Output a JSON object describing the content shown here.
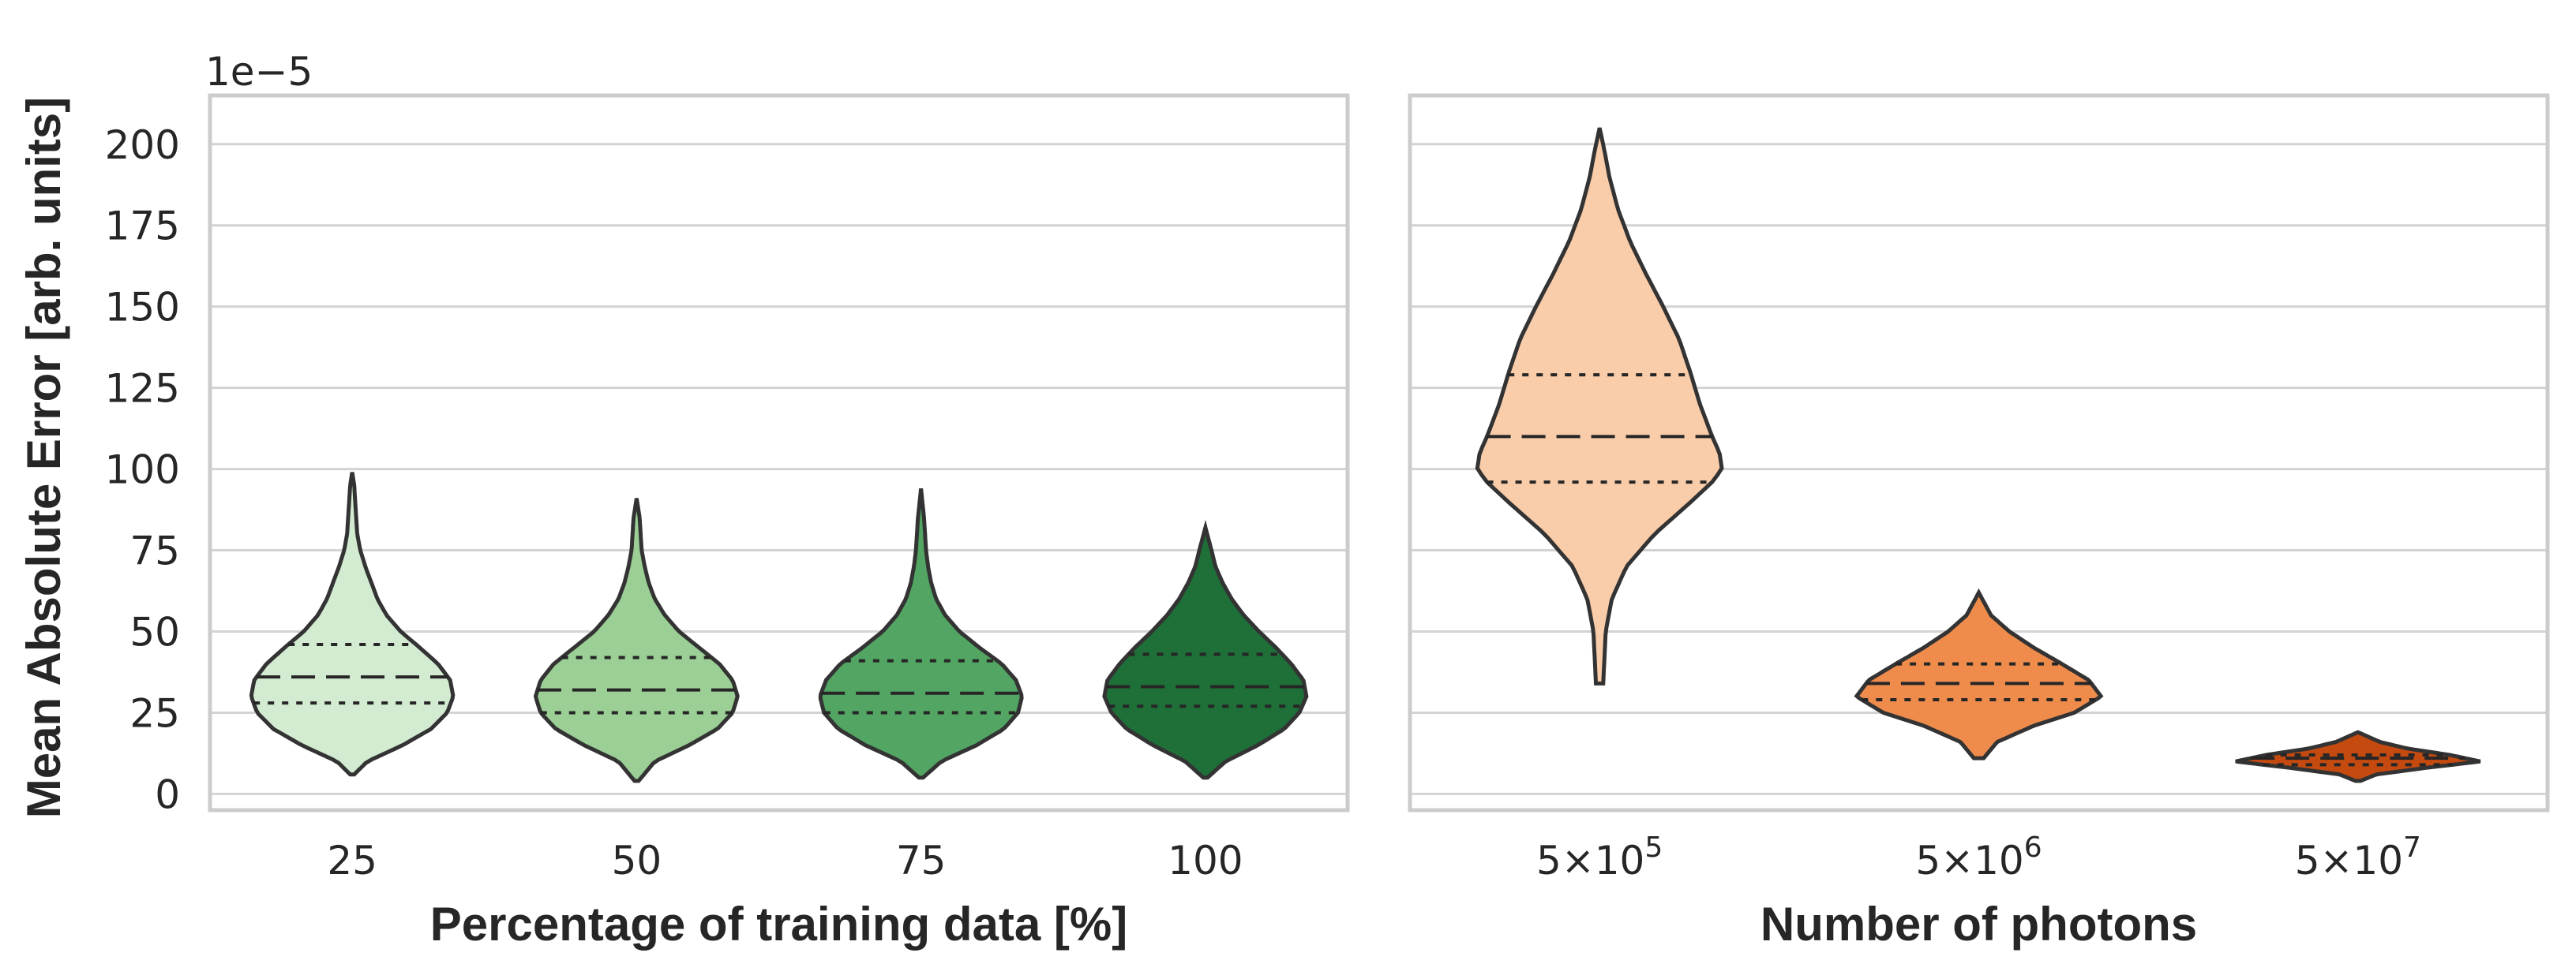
{
  "figure": {
    "ylabel": "Mean Absolute Error [arb. units]",
    "offset_text": "1e−5",
    "ylim": [
      -5,
      215
    ],
    "yticks": [
      0,
      25,
      50,
      75,
      100,
      125,
      150,
      175,
      200
    ],
    "ytick_labels": [
      "0",
      "25",
      "50",
      "75",
      "100",
      "125",
      "150",
      "175",
      "200"
    ]
  },
  "chart_data": [
    {
      "type": "violin",
      "title": "",
      "xlabel": "Percentage of training data [%]",
      "ylabel": "Mean Absolute Error [arb. units]",
      "ylim": [
        -5,
        215
      ],
      "grid": "horizontal",
      "inner": "quartile",
      "categories": [
        "25",
        "50",
        "75",
        "100"
      ],
      "series": [
        {
          "name": "25",
          "color": "#d3ebd1",
          "min": 6,
          "max": 99,
          "q1": 28,
          "median": 36,
          "q3": 46,
          "profile": [
            [
              6,
              0.02
            ],
            [
              10,
              0.15
            ],
            [
              15,
              0.5
            ],
            [
              20,
              0.78
            ],
            [
              25,
              0.94
            ],
            [
              30,
              1.0
            ],
            [
              35,
              0.97
            ],
            [
              40,
              0.85
            ],
            [
              45,
              0.67
            ],
            [
              50,
              0.48
            ],
            [
              55,
              0.34
            ],
            [
              60,
              0.25
            ],
            [
              65,
              0.19
            ],
            [
              70,
              0.13
            ],
            [
              75,
              0.08
            ],
            [
              80,
              0.05
            ],
            [
              85,
              0.04
            ],
            [
              90,
              0.03
            ],
            [
              95,
              0.02
            ],
            [
              99,
              0.0
            ]
          ]
        },
        {
          "name": "50",
          "color": "#9bcf95",
          "min": 4,
          "max": 91,
          "q1": 25,
          "median": 32,
          "q3": 42,
          "profile": [
            [
              4,
              0.02
            ],
            [
              10,
              0.18
            ],
            [
              15,
              0.52
            ],
            [
              20,
              0.8
            ],
            [
              25,
              0.95
            ],
            [
              30,
              1.0
            ],
            [
              35,
              0.95
            ],
            [
              40,
              0.82
            ],
            [
              45,
              0.62
            ],
            [
              50,
              0.42
            ],
            [
              55,
              0.28
            ],
            [
              60,
              0.18
            ],
            [
              65,
              0.12
            ],
            [
              70,
              0.08
            ],
            [
              75,
              0.05
            ],
            [
              80,
              0.04
            ],
            [
              85,
              0.03
            ],
            [
              91,
              0.0
            ]
          ]
        },
        {
          "name": "75",
          "color": "#52a562",
          "min": 5,
          "max": 94,
          "q1": 25,
          "median": 31,
          "q3": 41,
          "profile": [
            [
              5,
              0.02
            ],
            [
              10,
              0.2
            ],
            [
              15,
              0.55
            ],
            [
              20,
              0.82
            ],
            [
              25,
              0.96
            ],
            [
              30,
              1.0
            ],
            [
              35,
              0.94
            ],
            [
              40,
              0.8
            ],
            [
              45,
              0.58
            ],
            [
              50,
              0.38
            ],
            [
              55,
              0.24
            ],
            [
              60,
              0.15
            ],
            [
              65,
              0.1
            ],
            [
              70,
              0.07
            ],
            [
              75,
              0.05
            ],
            [
              80,
              0.04
            ],
            [
              85,
              0.03
            ],
            [
              94,
              0.0
            ]
          ]
        },
        {
          "name": "100",
          "color": "#1e6f38",
          "min": 5,
          "max": 82,
          "q1": 27,
          "median": 33,
          "q3": 43,
          "profile": [
            [
              5,
              0.02
            ],
            [
              10,
              0.2
            ],
            [
              15,
              0.52
            ],
            [
              20,
              0.78
            ],
            [
              25,
              0.93
            ],
            [
              30,
              1.0
            ],
            [
              35,
              0.97
            ],
            [
              40,
              0.85
            ],
            [
              45,
              0.7
            ],
            [
              50,
              0.53
            ],
            [
              55,
              0.38
            ],
            [
              60,
              0.26
            ],
            [
              65,
              0.17
            ],
            [
              70,
              0.1
            ],
            [
              75,
              0.06
            ],
            [
              82,
              0.0
            ]
          ]
        }
      ]
    },
    {
      "type": "violin",
      "title": "",
      "xlabel": "Number of photons",
      "ylabel": "",
      "ylim": [
        -5,
        215
      ],
      "grid": "horizontal",
      "inner": "quartile",
      "categories": [
        "5×10^5",
        "5×10^6",
        "5×10^7"
      ],
      "tick_labels": [
        {
          "base": "5×10",
          "exp": "5"
        },
        {
          "base": "5×10",
          "exp": "6"
        },
        {
          "base": "5×10",
          "exp": "7"
        }
      ],
      "series": [
        {
          "name": "5×10^5",
          "color": "#f9ccaa",
          "min": 34,
          "max": 205,
          "q1": 96,
          "median": 110,
          "q3": 129,
          "profile": [
            [
              34,
              0.03
            ],
            [
              50,
              0.05
            ],
            [
              60,
              0.1
            ],
            [
              70,
              0.22
            ],
            [
              80,
              0.45
            ],
            [
              90,
              0.75
            ],
            [
              96,
              0.92
            ],
            [
              100,
              1.0
            ],
            [
              105,
              0.98
            ],
            [
              110,
              0.92
            ],
            [
              120,
              0.82
            ],
            [
              130,
              0.74
            ],
            [
              140,
              0.65
            ],
            [
              150,
              0.52
            ],
            [
              160,
              0.38
            ],
            [
              170,
              0.25
            ],
            [
              180,
              0.15
            ],
            [
              190,
              0.08
            ],
            [
              198,
              0.04
            ],
            [
              205,
              0.0
            ]
          ]
        },
        {
          "name": "5×10^6",
          "color": "#ef8c4c",
          "min": 11,
          "max": 62,
          "q1": 29,
          "median": 34,
          "q3": 40,
          "profile": [
            [
              11,
              0.04
            ],
            [
              16,
              0.15
            ],
            [
              21,
              0.45
            ],
            [
              25,
              0.78
            ],
            [
              30,
              1.0
            ],
            [
              35,
              0.9
            ],
            [
              40,
              0.68
            ],
            [
              45,
              0.45
            ],
            [
              50,
              0.25
            ],
            [
              55,
              0.1
            ],
            [
              62,
              0.0
            ]
          ]
        },
        {
          "name": "5×10^7",
          "color": "#c54a10",
          "min": 4,
          "max": 19,
          "q1": 9,
          "median": 11,
          "q3": 12,
          "profile": [
            [
              4,
              0.02
            ],
            [
              6,
              0.15
            ],
            [
              8,
              0.55
            ],
            [
              10,
              1.0
            ],
            [
              12,
              0.75
            ],
            [
              14,
              0.4
            ],
            [
              16,
              0.18
            ],
            [
              19,
              0.0
            ]
          ]
        }
      ]
    }
  ]
}
